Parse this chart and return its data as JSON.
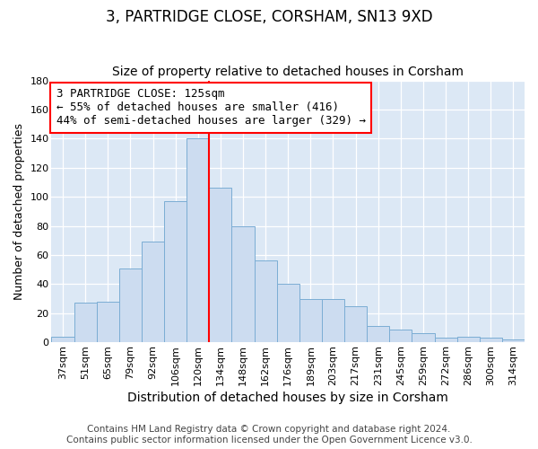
{
  "title": "3, PARTRIDGE CLOSE, CORSHAM, SN13 9XD",
  "subtitle": "Size of property relative to detached houses in Corsham",
  "xlabel": "Distribution of detached houses by size in Corsham",
  "ylabel": "Number of detached properties",
  "bar_labels": [
    "37sqm",
    "51sqm",
    "65sqm",
    "79sqm",
    "92sqm",
    "106sqm",
    "120sqm",
    "134sqm",
    "148sqm",
    "162sqm",
    "176sqm",
    "189sqm",
    "203sqm",
    "217sqm",
    "231sqm",
    "245sqm",
    "259sqm",
    "272sqm",
    "286sqm",
    "300sqm",
    "314sqm"
  ],
  "bar_values": [
    4,
    27,
    28,
    51,
    69,
    97,
    140,
    106,
    80,
    56,
    40,
    30,
    30,
    25,
    11,
    9,
    6,
    3,
    4,
    3,
    2
  ],
  "bar_color": "#ccdcf0",
  "bar_edge_color": "#7badd4",
  "vline_color": "red",
  "vline_x_index": 6,
  "annotation_text": "3 PARTRIDGE CLOSE: 125sqm\n← 55% of detached houses are smaller (416)\n44% of semi-detached houses are larger (329) →",
  "annotation_box_color": "white",
  "annotation_box_edgecolor": "red",
  "ylim": [
    0,
    180
  ],
  "yticks": [
    0,
    20,
    40,
    60,
    80,
    100,
    120,
    140,
    160,
    180
  ],
  "figure_bg_color": "#ffffff",
  "plot_bg_color": "#dce8f5",
  "grid_color": "#ffffff",
  "footer_line1": "Contains HM Land Registry data © Crown copyright and database right 2024.",
  "footer_line2": "Contains public sector information licensed under the Open Government Licence v3.0.",
  "title_fontsize": 12,
  "subtitle_fontsize": 10,
  "xlabel_fontsize": 10,
  "ylabel_fontsize": 9,
  "tick_fontsize": 8,
  "annotation_fontsize": 9,
  "footer_fontsize": 7.5
}
